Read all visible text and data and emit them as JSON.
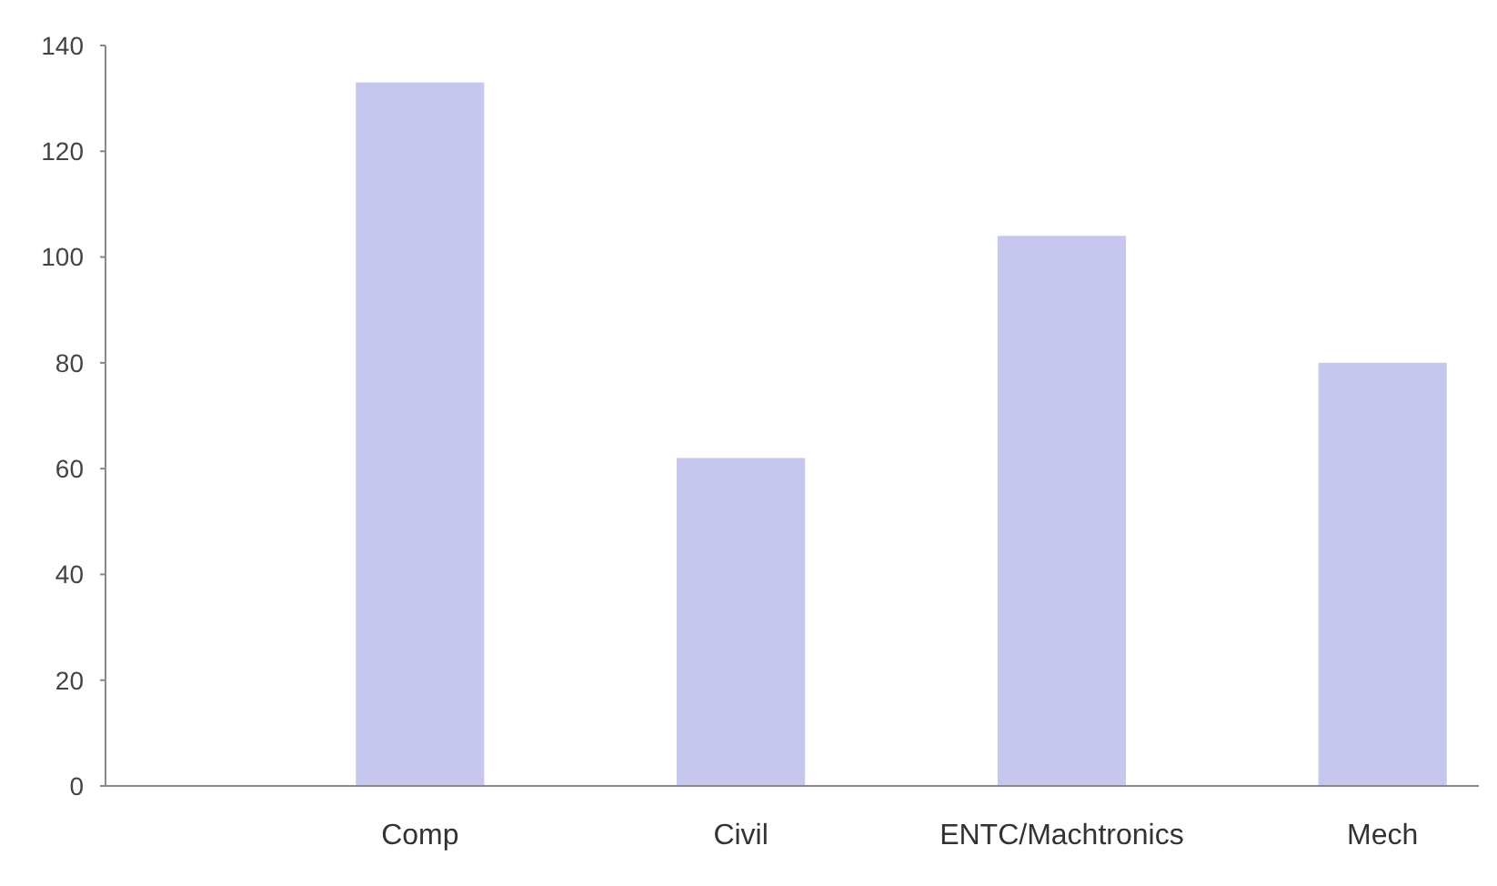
{
  "chart_data": {
    "type": "bar",
    "categories": [
      "Comp",
      "Civil",
      "ENTC/Machtronics",
      "Mech"
    ],
    "values": [
      133,
      62,
      104,
      80
    ],
    "color": "#c6c6ef",
    "ylim": [
      0,
      140
    ],
    "yticks": [
      0,
      20,
      40,
      60,
      80,
      100,
      120,
      140
    ],
    "grid": false
  }
}
